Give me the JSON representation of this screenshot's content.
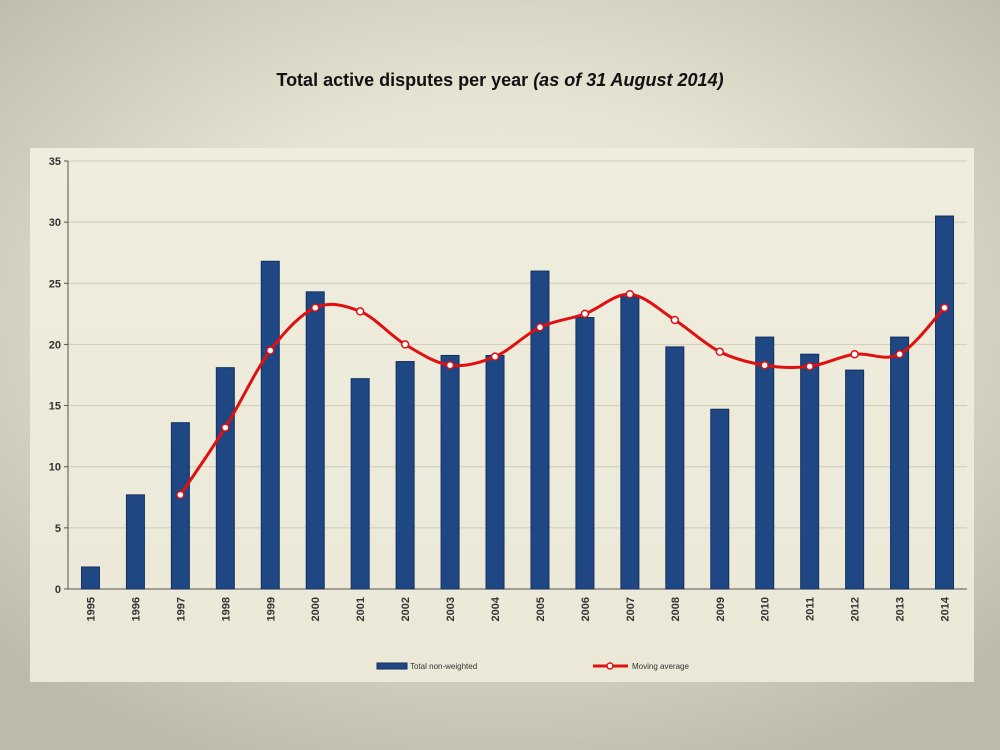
{
  "title": {
    "main": "Total active disputes per year",
    "sub": "(as of 31 August 2014)"
  },
  "colors": {
    "bar": "#1f4783",
    "line": "#e01010",
    "marker_fill": "#ffffff"
  },
  "chart_data": {
    "type": "bar",
    "categories": [
      "1995",
      "1996",
      "1997",
      "1998",
      "1999",
      "2000",
      "2001",
      "2002",
      "2003",
      "2004",
      "2005",
      "2006",
      "2007",
      "2008",
      "2009",
      "2010",
      "2011",
      "2012",
      "2013",
      "2014"
    ],
    "ylim": [
      0,
      35
    ],
    "yticks": [
      0,
      5,
      10,
      15,
      20,
      25,
      30,
      35
    ],
    "grid": true,
    "legend_position": "bottom",
    "series": [
      {
        "name": "Total non-weighted",
        "type": "bar",
        "values": [
          1.8,
          7.7,
          13.6,
          18.1,
          26.8,
          24.3,
          17.2,
          18.6,
          19.1,
          19.1,
          26.0,
          22.2,
          23.9,
          19.8,
          14.7,
          20.6,
          19.2,
          17.9,
          20.6,
          30.5
        ]
      },
      {
        "name": "Moving average",
        "type": "line",
        "values": [
          null,
          null,
          7.7,
          13.2,
          19.5,
          23.0,
          22.7,
          20.0,
          18.3,
          19.0,
          21.4,
          22.5,
          24.1,
          22.0,
          19.4,
          18.3,
          18.2,
          19.2,
          19.2,
          23.0
        ]
      }
    ]
  }
}
